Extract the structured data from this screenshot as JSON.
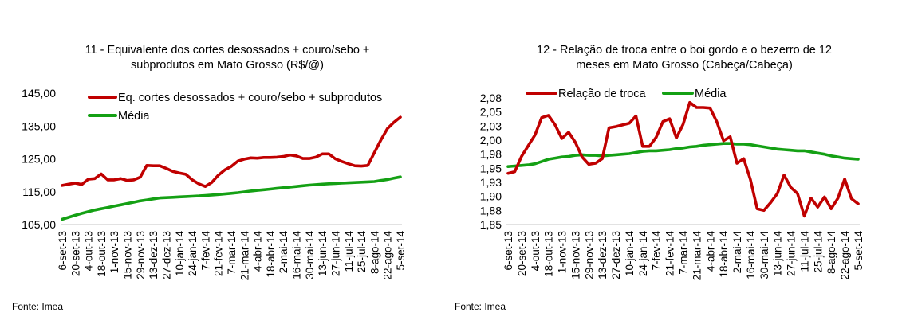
{
  "colors": {
    "series": "#c00000",
    "media": "#14a014",
    "axis": "#d9d9d9"
  },
  "source_label": "Fonte: Imea",
  "chart_data": [
    {
      "type": "line",
      "title": [
        "11 - Equivalente dos cortes desossados + couro/sebo +",
        "subprodutos em Mato Grosso (R$/@)"
      ],
      "xlabel": "",
      "ylabel": "",
      "ylim": [
        105,
        145
      ],
      "yticks": [
        105,
        115,
        125,
        135,
        145
      ],
      "ytick_labels": [
        "105,00",
        "115,00",
        "125,00",
        "135,00",
        "145,00"
      ],
      "legend_placement": "top",
      "x_tick_labels": [
        "6-set-13",
        "20-set-13",
        "4-out-13",
        "18-out-13",
        "1-nov-13",
        "15-nov-13",
        "29-nov-13",
        "13-dez-13",
        "27-dez-13",
        "10-jan-14",
        "24-jan-14",
        "7-fev-14",
        "21-fev-14",
        "7-mar-14",
        "21-mar-14",
        "4-abr-14",
        "18-abr-14",
        "2-mai-14",
        "16-mai-14",
        "30-mai-14",
        "13-jun-14",
        "27-jun-14",
        "11-jul-14",
        "25-jul-14",
        "8-ago-14",
        "22-ago-14",
        "5-set-14"
      ],
      "points_per_label": 2,
      "series": [
        {
          "name": "Eq. cortes desossados + couro/sebo + subprodutos",
          "color_key": "series",
          "values": [
            116.9,
            117.3,
            117.6,
            117.2,
            118.8,
            119.0,
            120.4,
            118.6,
            118.6,
            119.0,
            118.4,
            118.6,
            119.4,
            123.0,
            122.9,
            122.9,
            122.1,
            121.2,
            120.7,
            120.3,
            118.6,
            117.4,
            116.6,
            117.8,
            120.0,
            121.6,
            122.7,
            124.3,
            124.9,
            125.3,
            125.2,
            125.4,
            125.4,
            125.5,
            125.7,
            126.2,
            125.9,
            125.1,
            125.1,
            125.5,
            126.5,
            126.5,
            125.0,
            124.2,
            123.5,
            122.9,
            122.8,
            123.0,
            126.9,
            130.7,
            134.2,
            136.1,
            137.7
          ]
        },
        {
          "name": "Média",
          "color_key": "media",
          "values": [
            106.6,
            107.2,
            107.8,
            108.4,
            108.9,
            109.4,
            109.8,
            110.2,
            110.6,
            111.0,
            111.4,
            111.8,
            112.2,
            112.5,
            112.8,
            113.1,
            113.2,
            113.3,
            113.4,
            113.5,
            113.6,
            113.7,
            113.85,
            114.0,
            114.15,
            114.3,
            114.5,
            114.7,
            114.95,
            115.2,
            115.4,
            115.6,
            115.8,
            116.0,
            116.2,
            116.4,
            116.6,
            116.8,
            117.0,
            117.15,
            117.3,
            117.4,
            117.5,
            117.6,
            117.7,
            117.8,
            117.9,
            118.0,
            118.1,
            118.4,
            118.7,
            119.1,
            119.5
          ]
        }
      ]
    },
    {
      "type": "line",
      "title": [
        "12 - Relação de troca entre o boi gordo e o bezerro de 12",
        "meses em Mato Grosso (Cabeça/Cabeça)"
      ],
      "xlabel": "",
      "ylabel": "",
      "ylim": [
        1.85,
        2.075
      ],
      "yticks": [
        1.85,
        1.875,
        1.9,
        1.925,
        1.95,
        1.975,
        2.0,
        2.025,
        2.05,
        2.075
      ],
      "ytick_labels": [
        "1,85",
        "1,88",
        "1,90",
        "1,93",
        "1,95",
        "1,98",
        "2,00",
        "2,03",
        "2,05",
        "2,08"
      ],
      "legend_placement": "top",
      "x_tick_labels": [
        "6-set-13",
        "20-set-13",
        "4-out-13",
        "18-out-13",
        "1-nov-13",
        "15-nov-13",
        "29-nov-13",
        "13-dez-13",
        "27-dez-13",
        "10-jan-14",
        "24-jan-14",
        "7-fev-14",
        "21-fev-14",
        "7-mar-14",
        "21-mar-14",
        "4-abr-14",
        "18-abr-14",
        "2-mai-14",
        "16-mai-14",
        "30-mai-14",
        "13-jun-14",
        "27-jun-14",
        "11-jul-14",
        "25-jul-14",
        "8-ago-14",
        "22-ago-14",
        "5-set-14"
      ],
      "points_per_label": 2,
      "series": [
        {
          "name": "Relação de troca",
          "color_key": "series",
          "values": [
            1.941,
            1.944,
            1.971,
            1.99,
            2.009,
            2.04,
            2.044,
            2.027,
            2.003,
            2.014,
            1.996,
            1.97,
            1.957,
            1.959,
            1.967,
            2.022,
            2.024,
            2.027,
            2.03,
            2.043,
            1.989,
            1.989,
            2.005,
            2.033,
            2.038,
            2.004,
            2.028,
            2.067,
            2.058,
            2.058,
            2.057,
            2.033,
            1.999,
            2.006,
            1.959,
            1.967,
            1.93,
            1.878,
            1.875,
            1.889,
            1.905,
            1.938,
            1.916,
            1.905,
            1.865,
            1.897,
            1.881,
            1.899,
            1.878,
            1.897,
            1.931,
            1.896,
            1.887
          ]
        },
        {
          "name": "Média",
          "color_key": "media",
          "values": [
            1.953,
            1.954,
            1.955,
            1.956,
            1.958,
            1.962,
            1.966,
            1.968,
            1.97,
            1.971,
            1.973,
            1.974,
            1.973,
            1.973,
            1.972,
            1.973,
            1.974,
            1.975,
            1.976,
            1.978,
            1.98,
            1.981,
            1.981,
            1.982,
            1.983,
            1.985,
            1.986,
            1.988,
            1.989,
            1.991,
            1.992,
            1.993,
            1.994,
            1.994,
            1.993,
            1.993,
            1.992,
            1.99,
            1.988,
            1.986,
            1.984,
            1.983,
            1.982,
            1.981,
            1.981,
            1.979,
            1.977,
            1.975,
            1.972,
            1.97,
            1.968,
            1.967,
            1.966
          ]
        }
      ]
    }
  ]
}
